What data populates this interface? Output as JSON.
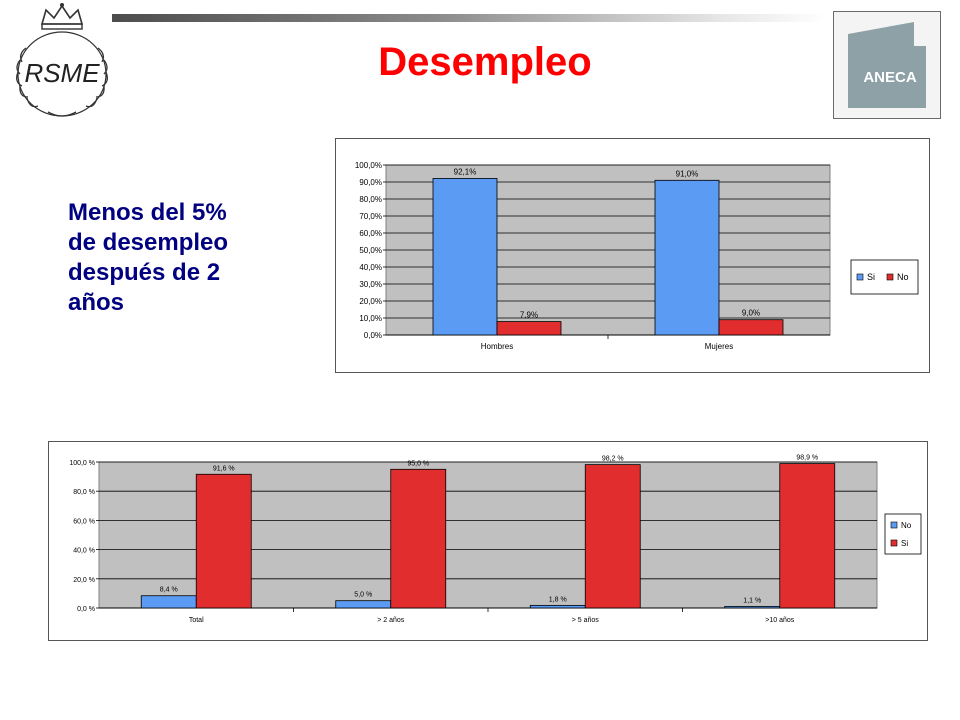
{
  "page": {
    "title": "Desempleo",
    "subtitle": "Menos del 5%\nde desempleo\ndespués de  2\naños"
  },
  "logos": {
    "left_crest_text": "RSME",
    "right_logo_text": "ANECA"
  },
  "colors": {
    "title": "#ff0000",
    "subtitle": "#000080",
    "blue": "#5b9bf3",
    "red": "#e12d2d",
    "plot_bg": "#c0c0c0"
  },
  "chart_data": [
    {
      "type": "bar",
      "categories": [
        "Hombres",
        "Mujeres"
      ],
      "series": [
        {
          "name": "Si",
          "values": [
            92.1,
            91.0
          ],
          "color": "#5b9bf3"
        },
        {
          "name": "No",
          "values": [
            7.9,
            9.0
          ],
          "color": "#e12d2d"
        }
      ],
      "data_labels": [
        [
          "92,1%",
          "91,0%"
        ],
        [
          "7,9%",
          "9,0%"
        ]
      ],
      "yticks": [
        "0,0%",
        "10,0%",
        "20,0%",
        "30,0%",
        "40,0%",
        "50,0%",
        "60,0%",
        "70,0%",
        "80,0%",
        "90,0%",
        "100,0%"
      ],
      "ylim": [
        0,
        100
      ],
      "grid": true,
      "legend": "right",
      "title": "",
      "xlabel": "",
      "ylabel": ""
    },
    {
      "type": "bar",
      "categories": [
        "Total",
        "> 2 años",
        "> 5 años",
        ">10 años"
      ],
      "series": [
        {
          "name": "No",
          "values": [
            8.4,
            5.0,
            1.8,
            1.1
          ],
          "color": "#5b9bf3"
        },
        {
          "name": "Si",
          "values": [
            91.6,
            95.0,
            98.2,
            98.9
          ],
          "color": "#e12d2d"
        }
      ],
      "data_labels": [
        [
          "8,4 %",
          "5,0 %",
          "1,8 %",
          "1,1 %"
        ],
        [
          "91,6 %",
          "95,0 %",
          "98,2 %",
          "98,9 %"
        ]
      ],
      "yticks": [
        "0,0 %",
        "20,0 %",
        "40,0 %",
        "60,0 %",
        "80,0 %",
        "100,0 %"
      ],
      "ylim": [
        0,
        100
      ],
      "grid": true,
      "legend": "right",
      "title": "",
      "xlabel": "",
      "ylabel": ""
    }
  ]
}
